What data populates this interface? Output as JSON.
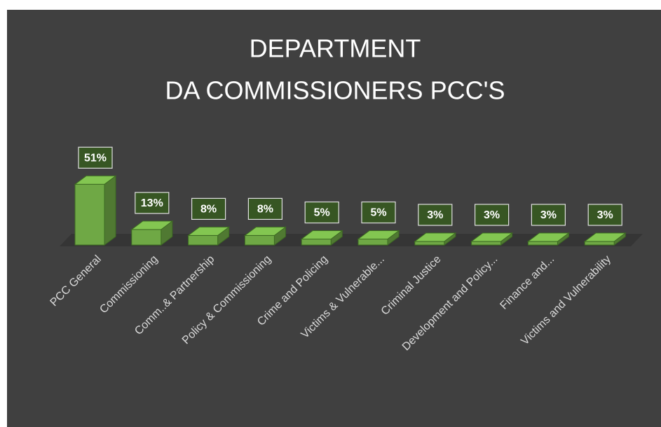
{
  "chart_data": {
    "type": "bar3d",
    "title": [
      "DEPARTMENT",
      "DA COMMISSIONERS PCC'S"
    ],
    "categories": [
      "PCC General",
      "Commissioning",
      "Comm..& Partnership",
      "Policy & Commissioning",
      "Crime and Policing",
      "Victims & Vulnerable...",
      "Criminal Justice",
      "Development and Policy...",
      "Finance and...",
      "Victims and Vulnerability"
    ],
    "values": [
      51,
      13,
      8,
      8,
      5,
      5,
      3,
      3,
      3,
      3
    ],
    "value_labels": [
      "51%",
      "13%",
      "8%",
      "8%",
      "5%",
      "5%",
      "3%",
      "3%",
      "3%",
      "3%"
    ],
    "color": "#6fa845"
  }
}
